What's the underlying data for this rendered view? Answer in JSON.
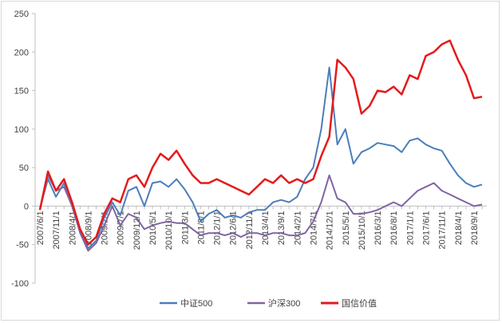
{
  "chart_data": {
    "type": "line",
    "title": "",
    "xlabel": "",
    "ylabel": "",
    "ylim": [
      -100,
      250
    ],
    "yticks": [
      -100,
      -50,
      0,
      50,
      100,
      150,
      200,
      250
    ],
    "grid": false,
    "legend_position": "bottom",
    "x": [
      "2007/6/1",
      "2007/8/1",
      "2007/11/1",
      "2008/1/1",
      "2008/4/1",
      "2008/7/1",
      "2008/9/1",
      "2008/12/1",
      "2009/2/1",
      "2009/5/1",
      "2009/7/1",
      "2009/9/1",
      "2009/12/1",
      "2010/3/1",
      "2010/5/1",
      "2010/8/1",
      "2010/10/1",
      "2011/1/1",
      "2011/3/1",
      "2011/6/1",
      "2011/8/1",
      "2011/11/1",
      "2012/1/1",
      "2012/4/1",
      "2012/6/1",
      "2012/9/1",
      "2012/11/1",
      "2013/2/1",
      "2013/4/1",
      "2013/7/1",
      "2013/9/1",
      "2013/12/1",
      "2014/2/1",
      "2014/5/1",
      "2014/7/1",
      "2014/10/1",
      "2014/12/1",
      "2015/3/1",
      "2015/5/1",
      "2015/8/1",
      "2015/10/1",
      "2016/1/1",
      "2016/3/1",
      "2016/6/1",
      "2016/8/1",
      "2016/11/1",
      "2017/1/1",
      "2017/4/1",
      "2017/6/1",
      "2017/9/1",
      "2017/11/1",
      "2018/2/1",
      "2018/4/1",
      "2018/7/1",
      "2018/9/1",
      "2018/12/1"
    ],
    "x_tick_labels": [
      "2007/6/1",
      "2007/11/1",
      "2008/4/1",
      "2008/9/1",
      "2009/2/1",
      "2009/7/1",
      "2009/12/1",
      "2010/5/1",
      "2010/10/1",
      "2011/3/1",
      "2011/8/1",
      "2012/1/1",
      "2012/6/1",
      "2012/11/1",
      "2013/4/1",
      "2013/9/1",
      "2014/2/1",
      "2014/7/1",
      "2014/12/1",
      "2015/5/1",
      "2015/10/1",
      "2016/3/1",
      "2016/8/1",
      "2017/1/1",
      "2017/6/1",
      "2017/11/1",
      "2018/4/1",
      "2018/9/1"
    ],
    "series": [
      {
        "name": "中证500",
        "color": "#4a7ebb",
        "values": [
          -3,
          35,
          12,
          30,
          0,
          -30,
          -55,
          -45,
          -15,
          5,
          -12,
          20,
          25,
          0,
          30,
          32,
          25,
          35,
          22,
          5,
          -20,
          -10,
          -5,
          -15,
          -12,
          -15,
          -8,
          -5,
          -5,
          5,
          8,
          5,
          12,
          35,
          50,
          100,
          180,
          80,
          100,
          55,
          70,
          75,
          82,
          80,
          78,
          70,
          85,
          88,
          80,
          75,
          72,
          55,
          40,
          30,
          25,
          28
        ]
      },
      {
        "name": "沪深300",
        "color": "#8064a2",
        "values": [
          -5,
          40,
          20,
          25,
          0,
          -35,
          -58,
          -48,
          -25,
          0,
          -25,
          -10,
          -15,
          -30,
          -25,
          -22,
          -20,
          -22,
          -22,
          -30,
          -38,
          -35,
          -35,
          -38,
          -35,
          -40,
          -35,
          -35,
          -38,
          -35,
          -35,
          -38,
          -38,
          -35,
          -20,
          5,
          40,
          10,
          5,
          -10,
          -10,
          -8,
          -5,
          0,
          5,
          0,
          10,
          20,
          25,
          30,
          20,
          15,
          10,
          5,
          0,
          2
        ]
      },
      {
        "name": "国信价值",
        "color": "#e41a1c",
        "values": [
          -5,
          45,
          20,
          35,
          5,
          -30,
          -50,
          -40,
          -10,
          10,
          5,
          35,
          40,
          25,
          50,
          68,
          60,
          72,
          55,
          40,
          30,
          30,
          35,
          30,
          25,
          20,
          15,
          25,
          35,
          30,
          40,
          30,
          35,
          30,
          35,
          65,
          90,
          190,
          180,
          165,
          120,
          130,
          150,
          148,
          155,
          145,
          170,
          165,
          195,
          200,
          210,
          215,
          190,
          170,
          140,
          142
        ]
      }
    ]
  }
}
